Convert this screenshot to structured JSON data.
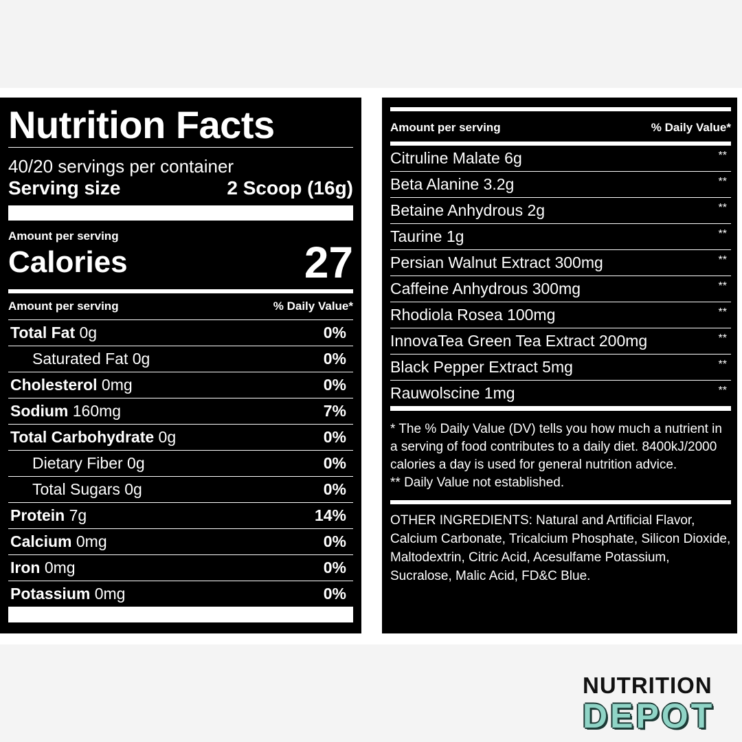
{
  "facts": {
    "title": "Nutrition Facts",
    "servings_per_container": "40/20 servings per container",
    "serving_size_label": "Serving size",
    "serving_size_value": "2 Scoop (16g)",
    "amount_per_serving": "Amount per serving",
    "calories_label": "Calories",
    "calories_value": "27",
    "table_header_left": "Amount per serving",
    "table_header_right": "% Daily Value*",
    "nutrients": [
      {
        "name": "Total Fat",
        "amount": "0g",
        "dv": "0%",
        "bold": true
      },
      {
        "name": "Saturated Fat",
        "amount": "0g",
        "dv": "0%",
        "bold": false
      },
      {
        "name": "Cholesterol",
        "amount": "0mg",
        "dv": "0%",
        "bold": true
      },
      {
        "name": "Sodium",
        "amount": "160mg",
        "dv": "7%",
        "bold": true
      },
      {
        "name": "Total Carbohydrate",
        "amount": "0g",
        "dv": "0%",
        "bold": true
      },
      {
        "name": "Dietary Fiber",
        "amount": "0g",
        "dv": "0%",
        "bold": false
      },
      {
        "name": "Total Sugars",
        "amount": "0g",
        "dv": "0%",
        "bold": false
      },
      {
        "name": "Protein",
        "amount": "7g",
        "dv": "14%",
        "bold": true
      },
      {
        "name": "Calcium",
        "amount": "0mg",
        "dv": "0%",
        "bold": true
      },
      {
        "name": "Iron",
        "amount": "0mg",
        "dv": "0%",
        "bold": true
      },
      {
        "name": "Potassium",
        "amount": "0mg",
        "dv": "0%",
        "bold": true
      }
    ]
  },
  "supplement": {
    "header_left": "Amount per serving",
    "header_right": "% Daily Value*",
    "ingredients": [
      {
        "name": "Citruline Malate 6g",
        "dv": "**"
      },
      {
        "name": "Beta Alanine 3.2g",
        "dv": "**"
      },
      {
        "name": "Betaine Anhydrous 2g",
        "dv": "**"
      },
      {
        "name": "Taurine 1g",
        "dv": "**"
      },
      {
        "name": "Persian Walnut Extract 300mg",
        "dv": "**"
      },
      {
        "name": "Caffeine Anhydrous 300mg",
        "dv": "**"
      },
      {
        "name": "Rhodiola Rosea 100mg",
        "dv": "**"
      },
      {
        "name": "InnovaTea Green Tea Extract 200mg",
        "dv": "**"
      },
      {
        "name": "Black Pepper Extract 5mg",
        "dv": "**"
      },
      {
        "name": "Rauwolscine 1mg",
        "dv": "**"
      }
    ],
    "footnote_1": "* The % Daily Value (DV) tells you how much a nutrient in a serving of food contributes to a daily diet. 8400kJ/2000 calories a day is used for general nutrition advice.",
    "footnote_2": "** Daily Value not established.",
    "other_ingredients": "OTHER INGREDIENTS: Natural and Artificial Flavor, Calcium Carbonate, Tricalcium Phosphate, Silicon Dioxide, Maltodextrin, Citric Acid, Acesulfame Potassium, Sucralose, Malic Acid, FD&C Blue."
  },
  "logo": {
    "line1": "NUTRITION",
    "line2": "DEPOT",
    "accent_color": "#8fd4c6"
  }
}
